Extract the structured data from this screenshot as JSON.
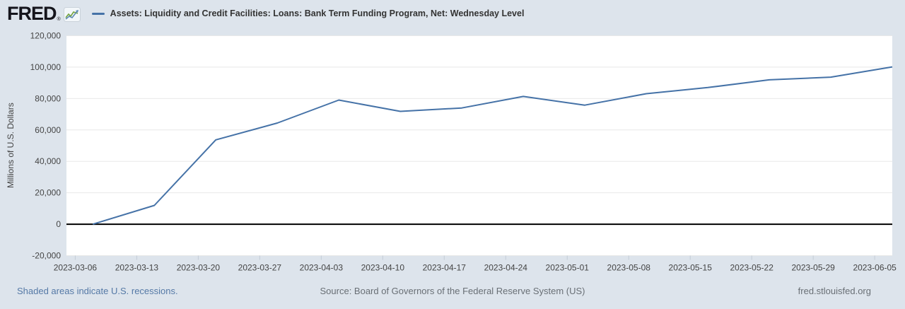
{
  "header": {
    "logo_text": "FRED",
    "logo_reg": "®",
    "series_title": "Assets: Liquidity and Credit Facilities: Loans: Bank Term Funding Program, Net: Wednesday Level"
  },
  "chart": {
    "y_axis_title": "Millions of U.S. Dollars"
  },
  "chart_data": {
    "type": "line",
    "title": "Assets: Liquidity and Credit Facilities: Loans: Bank Term Funding Program, Net: Wednesday Level",
    "xlabel": "",
    "ylabel": "Millions of U.S. Dollars",
    "x": [
      "2023-03-08",
      "2023-03-15",
      "2023-03-22",
      "2023-03-29",
      "2023-04-05",
      "2023-04-12",
      "2023-04-19",
      "2023-04-26",
      "2023-05-03",
      "2023-05-10",
      "2023-05-17",
      "2023-05-24",
      "2023-05-31",
      "2023-06-07"
    ],
    "values": [
      0,
      11943,
      53669,
      64403,
      79021,
      71837,
      73982,
      81327,
      75778,
      83101,
      87006,
      91907,
      93615,
      100161
    ],
    "ylim": [
      -20000,
      120000
    ],
    "y_tick_step": 20000,
    "x_ticks": [
      "2023-03-06",
      "2023-03-13",
      "2023-03-20",
      "2023-03-27",
      "2023-04-03",
      "2023-04-10",
      "2023-04-17",
      "2023-04-24",
      "2023-05-01",
      "2023-05-08",
      "2023-05-15",
      "2023-05-22",
      "2023-05-29",
      "2023-06-05"
    ],
    "x_domain": [
      "2023-03-05",
      "2023-06-07"
    ],
    "grid": "horizontal-only",
    "legend_position": "top",
    "line_color": "#4572a7",
    "zero_line_color": "#000000",
    "grid_color": "#e8e8e8",
    "tick_mark_color": "#c3ccd6",
    "plot_bg": "#ffffff",
    "background": "#dde4ec"
  },
  "footer": {
    "recessions_note": "Shaded areas indicate U.S. recessions.",
    "source": "Source: Board of Governors of the Federal Reserve System (US)",
    "site": "fred.stlouisfed.org"
  }
}
